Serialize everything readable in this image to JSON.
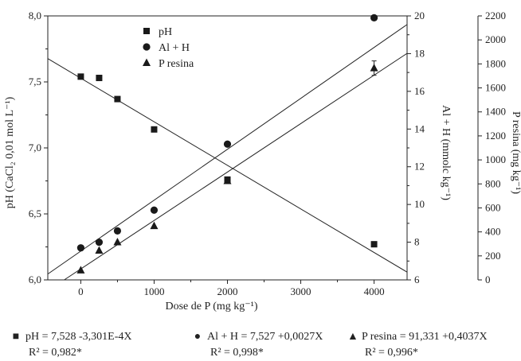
{
  "chart_data": {
    "type": "scatter",
    "xlabel": "Dose de P (mg kg⁻¹)",
    "xlim": [
      -450,
      4450
    ],
    "xticks": [
      0,
      1000,
      2000,
      3000,
      4000
    ],
    "axes": {
      "left": {
        "label": "pH (CaCl₂ 0,01 mol L⁻¹)",
        "lim": [
          6.0,
          8.0
        ],
        "ticks": [
          "6,0",
          "6,5",
          "7,0",
          "7,5",
          "8,0"
        ],
        "tick_values": [
          6.0,
          6.5,
          7.0,
          7.5,
          8.0
        ]
      },
      "mid": {
        "label": "Al + H (mmolc kg⁻¹)",
        "lim": [
          6,
          20
        ],
        "ticks": [
          "6",
          "8",
          "10",
          "12",
          "14",
          "16",
          "18",
          "20"
        ],
        "tick_values": [
          6,
          8,
          10,
          12,
          14,
          16,
          18,
          20
        ]
      },
      "right": {
        "label": "P resina (mg kg⁻¹)",
        "lim": [
          0,
          2200
        ],
        "ticks": [
          "0",
          "200",
          "400",
          "600",
          "800",
          "1000",
          "1200",
          "1400",
          "1600",
          "1800",
          "2000",
          "2200"
        ],
        "tick_values": [
          0,
          200,
          400,
          600,
          800,
          1000,
          1200,
          1400,
          1600,
          1800,
          2000,
          2200
        ]
      }
    },
    "legend_position": "top-left",
    "series": [
      {
        "name": "pH",
        "marker": "square",
        "axis": "left",
        "x": [
          0,
          250,
          500,
          1000,
          2000,
          4000
        ],
        "y": [
          7.54,
          7.53,
          7.37,
          7.14,
          6.76,
          6.27
        ],
        "fit": {
          "intercept": 7.528,
          "slope": -0.0003301
        }
      },
      {
        "name": "Al + H",
        "marker": "circle",
        "axis": "mid",
        "x": [
          0,
          250,
          500,
          1000,
          2000,
          4000
        ],
        "y": [
          7.7,
          8.0,
          8.6,
          9.7,
          13.2,
          19.9
        ],
        "fit": {
          "intercept": 7.527,
          "slope": 0.0027
        }
      },
      {
        "name": "P resina",
        "marker": "triangle",
        "axis": "right",
        "x": [
          0,
          250,
          500,
          1000,
          2000,
          4000
        ],
        "y": [
          80,
          245,
          315,
          450,
          825,
          1765
        ],
        "error": [
          0,
          0,
          0,
          0,
          0,
          60
        ],
        "fit": {
          "intercept": 91.331,
          "slope": 0.4037
        }
      }
    ],
    "equations": [
      {
        "marker": "square",
        "text": "pH = 7,528 -3,301E-4X",
        "r2": "R² = 0,982*"
      },
      {
        "marker": "circle",
        "text": "Al + H = 7,527 +0,0027X",
        "r2": "R² = 0,998*"
      },
      {
        "marker": "triangle",
        "text": "P resina = 91,331 +0,4037X",
        "r2": "R² = 0,996*"
      }
    ]
  }
}
